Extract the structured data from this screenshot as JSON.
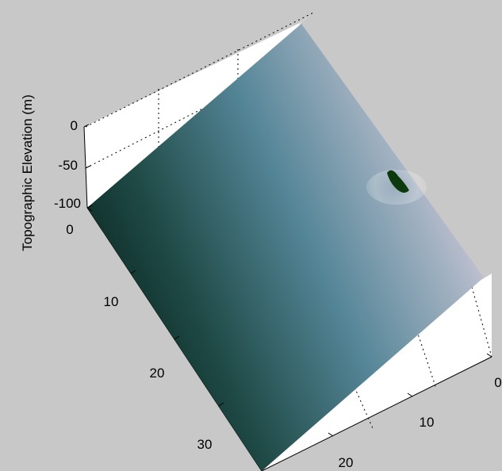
{
  "figure": {
    "background": "#c8c8c8",
    "axes_face": "#ffffff"
  },
  "chart_data": {
    "type": "surface",
    "title": "",
    "zlabel": "Topographic Elevation (m)",
    "xlabel": "",
    "ylabel": "",
    "z_ticks": [
      "0",
      "-50",
      "-100"
    ],
    "zlim": [
      -100,
      0
    ],
    "y_ticks_left": [
      "0",
      "10",
      "20",
      "30"
    ],
    "x_ticks_right": [
      "0",
      "10",
      "20"
    ],
    "grid": "on",
    "colormap": [
      "#0c2620",
      "#2d5b5e",
      "#6494a4",
      "#b8bcca",
      "#1e4d1e",
      "#8a7a3a",
      "#6e2a22"
    ],
    "surface_description_colors": {
      "deep": "#0c2620",
      "mid": "#5a8c9a",
      "shallow": "#c2c0d0",
      "shore": "#1f4a1a",
      "land": "#7a3a2c"
    }
  }
}
